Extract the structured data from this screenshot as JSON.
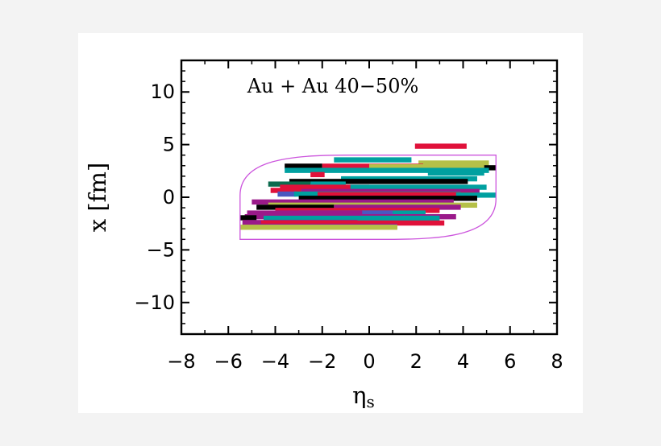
{
  "chart_data": {
    "type": "bar",
    "title": "Au + Au 40−50%",
    "xlabel_main": "η",
    "xlabel_sub": "s",
    "ylabel": "x [fm]",
    "xlim": [
      -8,
      8
    ],
    "ylim": [
      -13,
      13
    ],
    "xticks": [
      -8,
      -6,
      -4,
      -2,
      0,
      2,
      4,
      6,
      8
    ],
    "yticks": [
      10,
      5,
      0,
      -5,
      -10
    ],
    "tick_labels_x": [
      "−8",
      "−6",
      "−4",
      "−2",
      "0",
      "2",
      "4",
      "6",
      "8"
    ],
    "tick_labels_y": [
      "10",
      "5",
      "0",
      "−5",
      "−10"
    ],
    "grid": false,
    "boundary": {
      "color": "#cc55dd",
      "left": -5.5,
      "right": 5.4,
      "bottom": -4.0,
      "top": 4.0
    },
    "strings": [
      {
        "x0": 1.95,
        "x1": 4.15,
        "y": 4.85,
        "color": "#e0113a"
      },
      {
        "x0": -1.5,
        "x1": 1.8,
        "y": 3.55,
        "color": "#00a0a0"
      },
      {
        "x0": 2.1,
        "x1": 5.1,
        "y": 3.25,
        "color": "#b5c048"
      },
      {
        "x0": -3.6,
        "x1": -2.0,
        "y": 2.95,
        "color": "#000000"
      },
      {
        "x0": -2.0,
        "x1": 2.3,
        "y": 2.95,
        "color": "#e0113a"
      },
      {
        "x0": 0.0,
        "x1": 5.0,
        "y": 2.9,
        "color": "#b5c048"
      },
      {
        "x0": 4.9,
        "x1": 5.4,
        "y": 2.8,
        "color": "#000000"
      },
      {
        "x0": -3.6,
        "x1": 5.1,
        "y": 2.55,
        "color": "#00a0a0"
      },
      {
        "x0": 2.5,
        "x1": 4.9,
        "y": 2.3,
        "color": "#00a0a0"
      },
      {
        "x0": -2.5,
        "x1": -1.9,
        "y": 2.15,
        "color": "#e0113a"
      },
      {
        "x0": -1.2,
        "x1": 4.6,
        "y": 1.75,
        "color": "#00a0a0"
      },
      {
        "x0": -3.4,
        "x1": 4.2,
        "y": 1.5,
        "color": "#000000"
      },
      {
        "x0": -4.3,
        "x1": -2.5,
        "y": 1.25,
        "color": "#0b6a4e"
      },
      {
        "x0": -2.5,
        "x1": -1.0,
        "y": 1.25,
        "color": "#00a0a0"
      },
      {
        "x0": -3.8,
        "x1": 0.0,
        "y": 0.95,
        "color": "#e0113a"
      },
      {
        "x0": -0.8,
        "x1": 5.0,
        "y": 0.95,
        "color": "#00a0a0"
      },
      {
        "x0": -4.2,
        "x1": -2.9,
        "y": 0.65,
        "color": "#e0113a"
      },
      {
        "x0": -2.9,
        "x1": 4.7,
        "y": 0.55,
        "color": "#9a1a8a"
      },
      {
        "x0": -3.9,
        "x1": -3.1,
        "y": 0.3,
        "color": "#4a58c0"
      },
      {
        "x0": -3.2,
        "x1": 3.9,
        "y": 0.3,
        "color": "#00a0a0"
      },
      {
        "x0": -2.2,
        "x1": 4.5,
        "y": 0.25,
        "color": "#e0113a"
      },
      {
        "x0": 3.7,
        "x1": 5.4,
        "y": 0.2,
        "color": "#00a0a0"
      },
      {
        "x0": -3.0,
        "x1": 4.6,
        "y": -0.1,
        "color": "#000000"
      },
      {
        "x0": -5.0,
        "x1": 3.6,
        "y": -0.45,
        "color": "#9a1a8a"
      },
      {
        "x0": -4.3,
        "x1": 4.6,
        "y": -0.75,
        "color": "#b5c048"
      },
      {
        "x0": -4.8,
        "x1": -1.5,
        "y": -0.95,
        "color": "#000000"
      },
      {
        "x0": -1.5,
        "x1": 3.9,
        "y": -0.95,
        "color": "#9a1a8a"
      },
      {
        "x0": -4.0,
        "x1": 3.0,
        "y": -1.25,
        "color": "#e0113a"
      },
      {
        "x0": -3.0,
        "x1": 2.4,
        "y": -1.5,
        "color": "#00a0a0"
      },
      {
        "x0": -5.2,
        "x1": -0.2,
        "y": -1.5,
        "color": "#9a1a8a"
      },
      {
        "x0": -0.3,
        "x1": 1.0,
        "y": -1.5,
        "color": "#4a58c0"
      },
      {
        "x0": -5.3,
        "x1": 1.5,
        "y": -1.85,
        "color": "#9a1a8a"
      },
      {
        "x0": 1.5,
        "x1": 3.7,
        "y": -1.85,
        "color": "#9a1a8a"
      },
      {
        "x0": -5.5,
        "x1": -4.8,
        "y": -1.95,
        "color": "#000000"
      },
      {
        "x0": -4.5,
        "x1": 3.0,
        "y": -2.0,
        "color": "#00a0a0"
      },
      {
        "x0": -5.4,
        "x1": -0.5,
        "y": -2.4,
        "color": "#9a1a8a"
      },
      {
        "x0": -4.6,
        "x1": 3.2,
        "y": -2.45,
        "color": "#e0113a"
      },
      {
        "x0": -5.0,
        "x1": 1.2,
        "y": -2.75,
        "color": "#9a1a8a"
      },
      {
        "x0": -5.5,
        "x1": 1.2,
        "y": -2.85,
        "color": "#b5c048"
      }
    ]
  }
}
